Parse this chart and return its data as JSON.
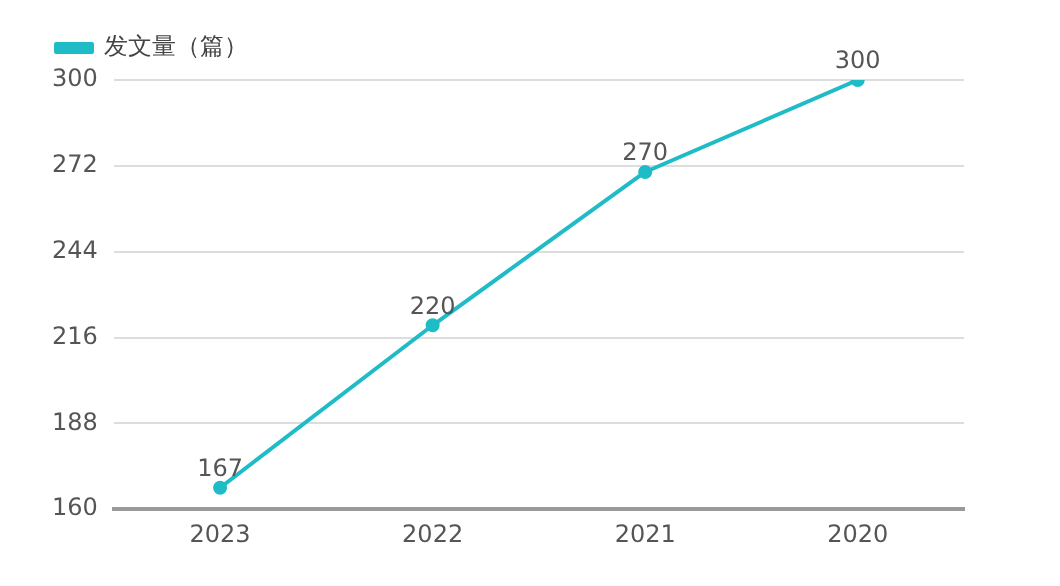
{
  "chart_data": {
    "type": "line",
    "categories": [
      "2023",
      "2022",
      "2021",
      "2020"
    ],
    "series": [
      {
        "name": "发文量（篇）",
        "color": "#1fbcc8",
        "values": [
          167,
          220,
          270,
          300
        ]
      }
    ],
    "ylim": [
      160,
      300
    ],
    "yticks": [
      160,
      188,
      216,
      244,
      272,
      300
    ],
    "grid": "y",
    "legend": "top left",
    "marker": "circle",
    "line_style": "solid",
    "data_labels": true
  }
}
